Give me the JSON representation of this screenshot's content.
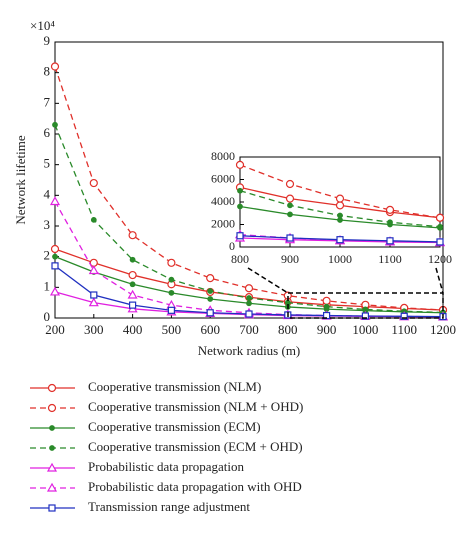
{
  "chart_data": [
    {
      "type": "line",
      "y_axis_multiplier": "×10⁴",
      "xlabel": "Network radius (m)",
      "ylabel": "Network lifetime",
      "x": [
        200,
        300,
        400,
        500,
        600,
        700,
        800,
        900,
        1000,
        1100,
        1200
      ],
      "xlim": [
        200,
        1200
      ],
      "xticks": [
        200,
        300,
        400,
        500,
        600,
        700,
        800,
        900,
        1000,
        1100,
        1200
      ],
      "ylim": [
        0,
        9
      ],
      "yticks": [
        0,
        1,
        2,
        3,
        4,
        5,
        6,
        7,
        8,
        9
      ],
      "series": [
        {
          "name": "Cooperative transmission (NLM)",
          "color": "#e0302a",
          "dash": false,
          "marker": "circle",
          "values": [
            2.25,
            1.8,
            1.4,
            1.1,
            0.85,
            0.68,
            0.53,
            0.43,
            0.37,
            0.31,
            0.26
          ]
        },
        {
          "name": "Cooperative transmission (NLM + OHD)",
          "color": "#e0302a",
          "dash": true,
          "marker": "circle",
          "values": [
            8.2,
            4.4,
            2.7,
            1.8,
            1.3,
            0.97,
            0.73,
            0.56,
            0.43,
            0.33,
            0.26
          ]
        },
        {
          "name": "Cooperative transmission (ECM)",
          "color": "#2a8a2a",
          "dash": false,
          "marker": "dot",
          "values": [
            2.0,
            1.5,
            1.1,
            0.82,
            0.62,
            0.48,
            0.36,
            0.29,
            0.24,
            0.2,
            0.17
          ]
        },
        {
          "name": "Cooperative transmission (ECM + OHD)",
          "color": "#2a8a2a",
          "dash": true,
          "marker": "dot",
          "values": [
            6.3,
            3.2,
            1.9,
            1.25,
            0.88,
            0.65,
            0.5,
            0.37,
            0.28,
            0.22,
            0.18
          ]
        },
        {
          "name": "Probabilistic data propagation",
          "color": "#e020e0",
          "dash": false,
          "marker": "triangle",
          "values": [
            0.85,
            0.5,
            0.3,
            0.2,
            0.15,
            0.11,
            0.08,
            0.065,
            0.055,
            0.045,
            0.04
          ]
        },
        {
          "name": "Probabilistic data propagation with OHD",
          "color": "#e020e0",
          "dash": true,
          "marker": "triangle",
          "values": [
            3.8,
            1.55,
            0.75,
            0.42,
            0.25,
            0.17,
            0.11,
            0.08,
            0.06,
            0.05,
            0.04
          ]
        },
        {
          "name": "Transmission range adjustment",
          "color": "#2030c0",
          "dash": false,
          "marker": "square",
          "values": [
            1.7,
            0.75,
            0.42,
            0.25,
            0.17,
            0.13,
            0.1,
            0.08,
            0.065,
            0.055,
            0.045
          ]
        }
      ]
    },
    {
      "type": "line",
      "x": [
        800,
        900,
        1000,
        1100,
        1200
      ],
      "xlim": [
        800,
        1200
      ],
      "xticks": [
        800,
        900,
        1000,
        1100,
        1200
      ],
      "ylim": [
        0,
        8000
      ],
      "yticks": [
        0,
        2000,
        4000,
        6000,
        8000
      ],
      "series": [
        {
          "color": "#e0302a",
          "dash": false,
          "marker": "circle",
          "values": [
            5300,
            4300,
            3700,
            3100,
            2600
          ]
        },
        {
          "color": "#e0302a",
          "dash": true,
          "marker": "circle",
          "values": [
            7300,
            5600,
            4300,
            3300,
            2600
          ]
        },
        {
          "color": "#2a8a2a",
          "dash": false,
          "marker": "dot",
          "values": [
            3600,
            2900,
            2400,
            2000,
            1700
          ]
        },
        {
          "color": "#2a8a2a",
          "dash": true,
          "marker": "dot",
          "values": [
            5000,
            3700,
            2800,
            2200,
            1800
          ]
        },
        {
          "color": "#e020e0",
          "dash": false,
          "marker": "triangle",
          "values": [
            800,
            650,
            550,
            450,
            400
          ]
        },
        {
          "color": "#e020e0",
          "dash": true,
          "marker": "triangle",
          "values": [
            1100,
            800,
            600,
            500,
            400
          ]
        },
        {
          "color": "#2030c0",
          "dash": false,
          "marker": "square",
          "values": [
            1000,
            800,
            650,
            550,
            450
          ]
        }
      ]
    }
  ]
}
